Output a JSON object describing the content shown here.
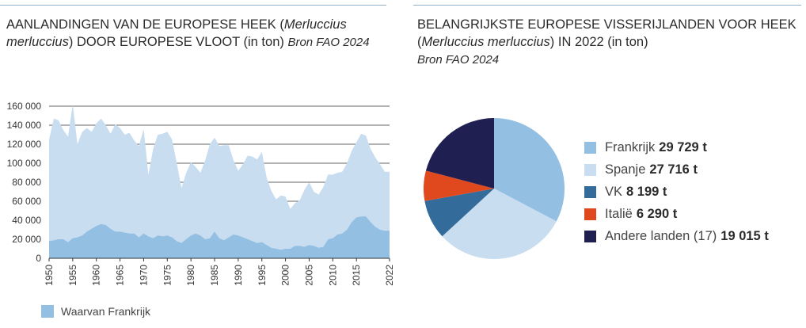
{
  "left": {
    "title_a": "AANLANDINGEN VAN DE EUROPESE HEEK  (",
    "title_species": "Merluccius merluccius",
    "title_b": ") DOOR EUROPESE VLOOT  (in ton) ",
    "title_source": "Bron FAO 2024",
    "legend_label": "Waarvan Frankrijk"
  },
  "right": {
    "title_a": "BELANGRIJKSTE EUROPESE VISSERIJLANDEN VOOR HEEK  (",
    "title_species": "Merluccius merluccius",
    "title_b": ") IN 2022 (in ton)",
    "title_source": "Bron FAO 2024"
  },
  "colors": {
    "total": "#c9ddf0",
    "france": "#93bfe2",
    "grid": "#333333",
    "rule": "#8fb3cf"
  },
  "chart_data": [
    {
      "type": "area",
      "title": "AANLANDINGEN VAN DE EUROPESE HEEK (Merluccius merluccius) DOOR EUROPESE VLOOT (in ton)",
      "x_range": [
        1950,
        2022
      ],
      "ylim": [
        0,
        160000
      ],
      "y_ticks": [
        0,
        20000,
        40000,
        60000,
        80000,
        100000,
        120000,
        140000,
        160000
      ],
      "y_tick_labels": [
        "0",
        "20 000",
        "40 000",
        "60 000",
        "80 000",
        "100 000",
        "120 000",
        "140 000",
        "160 000"
      ],
      "x_ticks": [
        1950,
        1955,
        1960,
        1965,
        1970,
        1975,
        1980,
        1985,
        1990,
        1995,
        2000,
        2005,
        2010,
        2015,
        2022
      ],
      "x_tick_labels": [
        "1950",
        "1955",
        "1960",
        "1965",
        "1970",
        "1975",
        "1980",
        "1985",
        "1990",
        "1995",
        "2000",
        "2005",
        "2010",
        "2015",
        "2022"
      ],
      "grid": "horizontal",
      "legend_position": "bottom-left",
      "series": [
        {
          "key": "total",
          "points": [
            [
              1950,
              125000
            ],
            [
              1951,
              147000
            ],
            [
              1952,
              145000
            ],
            [
              1953,
              135000
            ],
            [
              1954,
              128000
            ],
            [
              1955,
              162000
            ],
            [
              1956,
              120000
            ],
            [
              1957,
              133000
            ],
            [
              1958,
              137000
            ],
            [
              1959,
              133000
            ],
            [
              1960,
              142000
            ],
            [
              1961,
              147000
            ],
            [
              1962,
              140000
            ],
            [
              1963,
              131000
            ],
            [
              1964,
              141000
            ],
            [
              1965,
              137000
            ],
            [
              1966,
              130000
            ],
            [
              1967,
              132000
            ],
            [
              1968,
              124000
            ],
            [
              1969,
              118000
            ],
            [
              1970,
              136000
            ],
            [
              1971,
              88000
            ],
            [
              1972,
              115000
            ],
            [
              1973,
              130000
            ],
            [
              1974,
              131000
            ],
            [
              1975,
              133000
            ],
            [
              1976,
              125000
            ],
            [
              1977,
              100000
            ],
            [
              1978,
              74000
            ],
            [
              1979,
              90000
            ],
            [
              1980,
              101000
            ],
            [
              1981,
              96000
            ],
            [
              1982,
              90000
            ],
            [
              1983,
              103000
            ],
            [
              1984,
              120000
            ],
            [
              1985,
              127000
            ],
            [
              1986,
              118000
            ],
            [
              1987,
              119000
            ],
            [
              1988,
              119000
            ],
            [
              1989,
              103000
            ],
            [
              1990,
              92000
            ],
            [
              1991,
              99000
            ],
            [
              1992,
              108000
            ],
            [
              1993,
              107000
            ],
            [
              1994,
              104000
            ],
            [
              1995,
              112000
            ],
            [
              1996,
              85000
            ],
            [
              1997,
              71000
            ],
            [
              1998,
              62000
            ],
            [
              1999,
              66000
            ],
            [
              2000,
              65000
            ],
            [
              2001,
              52000
            ],
            [
              2002,
              58000
            ],
            [
              2003,
              61000
            ],
            [
              2004,
              72000
            ],
            [
              2005,
              80000
            ],
            [
              2006,
              70000
            ],
            [
              2007,
              67000
            ],
            [
              2008,
              75000
            ],
            [
              2009,
              88000
            ],
            [
              2010,
              88000
            ],
            [
              2011,
              90000
            ],
            [
              2012,
              91000
            ],
            [
              2013,
              100000
            ],
            [
              2014,
              113000
            ],
            [
              2015,
              122000
            ],
            [
              2016,
              131000
            ],
            [
              2017,
              129000
            ],
            [
              2018,
              115000
            ],
            [
              2019,
              106000
            ],
            [
              2020,
              99000
            ],
            [
              2021,
              91000
            ],
            [
              2022,
              91000
            ]
          ]
        },
        {
          "key": "france",
          "name": "Waarvan Frankrijk",
          "points": [
            [
              1950,
              18000
            ],
            [
              1951,
              19000
            ],
            [
              1952,
              20000
            ],
            [
              1953,
              20000
            ],
            [
              1954,
              17000
            ],
            [
              1955,
              21000
            ],
            [
              1956,
              22000
            ],
            [
              1957,
              24000
            ],
            [
              1958,
              28000
            ],
            [
              1959,
              31000
            ],
            [
              1960,
              34000
            ],
            [
              1961,
              36000
            ],
            [
              1962,
              35000
            ],
            [
              1963,
              31000
            ],
            [
              1964,
              28000
            ],
            [
              1965,
              28000
            ],
            [
              1966,
              27000
            ],
            [
              1967,
              26000
            ],
            [
              1968,
              26000
            ],
            [
              1969,
              22000
            ],
            [
              1970,
              26000
            ],
            [
              1971,
              23000
            ],
            [
              1972,
              21000
            ],
            [
              1973,
              24000
            ],
            [
              1974,
              23000
            ],
            [
              1975,
              24000
            ],
            [
              1976,
              22000
            ],
            [
              1977,
              18000
            ],
            [
              1978,
              16000
            ],
            [
              1979,
              20000
            ],
            [
              1980,
              24000
            ],
            [
              1981,
              26000
            ],
            [
              1982,
              24000
            ],
            [
              1983,
              20000
            ],
            [
              1984,
              21000
            ],
            [
              1985,
              28000
            ],
            [
              1986,
              21000
            ],
            [
              1987,
              19000
            ],
            [
              1988,
              22000
            ],
            [
              1989,
              25000
            ],
            [
              1990,
              24000
            ],
            [
              1991,
              22000
            ],
            [
              1992,
              20000
            ],
            [
              1993,
              18000
            ],
            [
              1994,
              16000
            ],
            [
              1995,
              17000
            ],
            [
              1996,
              14000
            ],
            [
              1997,
              11000
            ],
            [
              1998,
              10000
            ],
            [
              1999,
              9000
            ],
            [
              2000,
              10000
            ],
            [
              2001,
              10000
            ],
            [
              2002,
              13000
            ],
            [
              2003,
              13000
            ],
            [
              2004,
              12000
            ],
            [
              2005,
              14000
            ],
            [
              2006,
              13000
            ],
            [
              2007,
              11000
            ],
            [
              2008,
              12000
            ],
            [
              2009,
              20000
            ],
            [
              2010,
              21000
            ],
            [
              2011,
              25000
            ],
            [
              2012,
              26000
            ],
            [
              2013,
              30000
            ],
            [
              2014,
              38000
            ],
            [
              2015,
              43000
            ],
            [
              2016,
              44000
            ],
            [
              2017,
              44000
            ],
            [
              2018,
              38000
            ],
            [
              2019,
              33000
            ],
            [
              2020,
              30000
            ],
            [
              2021,
              29000
            ],
            [
              2022,
              29000
            ]
          ]
        }
      ]
    },
    {
      "type": "pie",
      "title": "BELANGRIJKSTE EUROPESE VISSERIJLANDEN VOOR HEEK (Merluccius merluccius) IN 2022 (in ton)",
      "legend_position": "right",
      "slices": [
        {
          "label": "Frankrijk",
          "value": 29729,
          "value_label": "29 729 t",
          "color": "#93bfe2"
        },
        {
          "label": "Spanje",
          "value": 27716,
          "value_label": "27 716 t",
          "color": "#c9ddf0"
        },
        {
          "label": "VK",
          "value": 8199,
          "value_label": "8 199 t",
          "color": "#336b9a"
        },
        {
          "label": "Italië",
          "value": 6290,
          "value_label": "6 290 t",
          "color": "#e0481e"
        },
        {
          "label": "Andere landen (17)",
          "value": 19015,
          "value_label": "19 015 t",
          "color": "#201f52"
        }
      ]
    }
  ]
}
